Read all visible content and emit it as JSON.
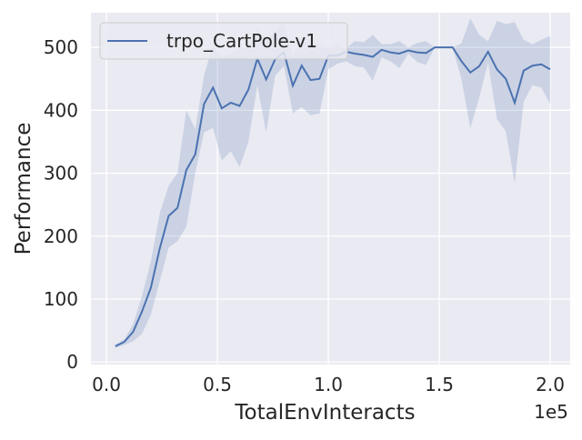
{
  "chart_data": {
    "type": "line",
    "title": "",
    "xlabel": "TotalEnvInteracts",
    "ylabel": "Performance",
    "x_offset_text": "1e5",
    "x_tick_labels": [
      "0.0",
      "0.5",
      "1.0",
      "1.5",
      "2.0"
    ],
    "x_tick_values": [
      0,
      50000,
      100000,
      150000,
      200000
    ],
    "y_tick_labels": [
      "0",
      "100",
      "200",
      "300",
      "400",
      "500"
    ],
    "y_tick_values": [
      0,
      100,
      200,
      300,
      400,
      500
    ],
    "xlim": [
      -7000,
      209000
    ],
    "ylim": [
      -4,
      555
    ],
    "grid": true,
    "legend_position": "top-left",
    "series": [
      {
        "name": "trpo_CartPole-v1",
        "color": "#4c72b0",
        "band_color": "#4c72b0",
        "x": [
          4000,
          8000,
          12000,
          16000,
          20000,
          24000,
          28000,
          32000,
          36000,
          40000,
          44000,
          48000,
          52000,
          56000,
          60000,
          64000,
          68000,
          72000,
          76000,
          80000,
          84000,
          88000,
          92000,
          96000,
          100000,
          104000,
          108000,
          112000,
          116000,
          120000,
          124000,
          128000,
          132000,
          136000,
          140000,
          144000,
          148000,
          152000,
          156000,
          160000,
          164000,
          168000,
          172000,
          176000,
          180000,
          184000,
          188000,
          192000,
          196000,
          200000
        ],
        "values": [
          25,
          32,
          48,
          80,
          118,
          180,
          232,
          245,
          305,
          330,
          410,
          436,
          403,
          412,
          407,
          433,
          482,
          449,
          481,
          492,
          439,
          471,
          448,
          450,
          487,
          487,
          493,
          490,
          488,
          485,
          496,
          492,
          490,
          495,
          492,
          491,
          500,
          500,
          500,
          478,
          460,
          470,
          493,
          465,
          450,
          412,
          463,
          471,
          473,
          465
        ],
        "upper": [
          28,
          36,
          60,
          105,
          160,
          236,
          280,
          300,
          400,
          370,
          455,
          505,
          485,
          490,
          500,
          500,
          530,
          510,
          525,
          540,
          487,
          520,
          510,
          505,
          500,
          505,
          498,
          510,
          508,
          520,
          505,
          505,
          510,
          500,
          507,
          510,
          500,
          500,
          500,
          506,
          546,
          520,
          510,
          542,
          537,
          540,
          512,
          505,
          512,
          518
        ],
        "lower": [
          22,
          27,
          33,
          45,
          75,
          128,
          182,
          192,
          215,
          300,
          365,
          372,
          320,
          335,
          310,
          350,
          440,
          364,
          455,
          470,
          395,
          405,
          392,
          395,
          465,
          474,
          478,
          470,
          468,
          447,
          484,
          478,
          467,
          490,
          477,
          472,
          500,
          500,
          500,
          450,
          372,
          420,
          476,
          386,
          367,
          284,
          413,
          440,
          436,
          410
        ]
      }
    ]
  }
}
